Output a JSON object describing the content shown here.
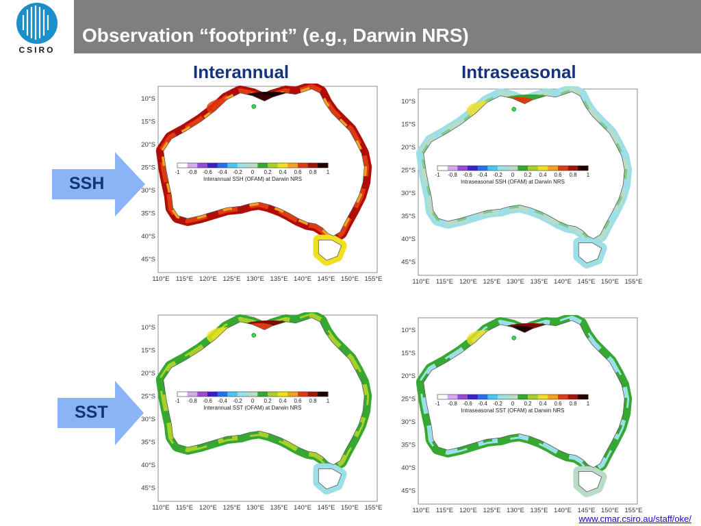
{
  "slide": {
    "title": "Observation “footprint” (e.g., Darwin NRS)",
    "logo_text": "CSIRO",
    "footer_link": "www.cmar.csiro.au/staff/oke/"
  },
  "columns": [
    "Interannual",
    "Intraseasonal"
  ],
  "rows": [
    "SSH",
    "SST"
  ],
  "axes": {
    "lat_ticks": [
      "10°S",
      "15°S",
      "20°S",
      "25°S",
      "30°S",
      "35°S",
      "40°S",
      "45°S"
    ],
    "lon_ticks": [
      "110°E",
      "115°E",
      "120°E",
      "125°E",
      "130°E",
      "135°E",
      "140°E",
      "145°E",
      "150°E",
      "155°E"
    ]
  },
  "colorbar": {
    "ticks": [
      "-1",
      "-0.8",
      "-0.6",
      "-0.4",
      "-0.2",
      "0",
      "0.2",
      "0.4",
      "0.6",
      "0.8",
      "1"
    ],
    "colors": [
      "#ffffff",
      "#d6a8f0",
      "#9a4ad8",
      "#3a20c8",
      "#2a6ef0",
      "#46c8f0",
      "#9cdfe6",
      "#b9dcc8",
      "#36a832",
      "#a8d02a",
      "#f0e020",
      "#f4a020",
      "#e03a12",
      "#a0140c",
      "#200000"
    ]
  },
  "panels": {
    "ssh_interannual": {
      "caption": "Interannual SSH (OFAM) at Darwin NRS"
    },
    "ssh_intraseasonal": {
      "caption": "Intraseasonal SSH (OFAM) at Darwin NRS"
    },
    "sst_interannual": {
      "caption": "Interannual SST (OFAM) at Darwin NRS"
    },
    "sst_intraseasonal": {
      "caption": "Intraseasonal SST (OFAM) at Darwin NRS"
    }
  }
}
